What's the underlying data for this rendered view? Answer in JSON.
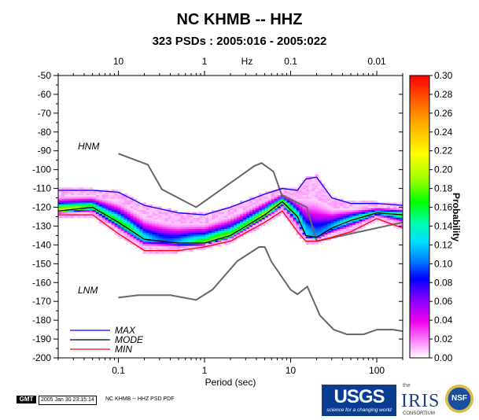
{
  "header": {
    "title": "NC KHMB -- HHZ",
    "subtitle": "323 PSDs : 2005:016 - 2005:022"
  },
  "footer": {
    "gmt_badge": "GMT",
    "timestamp": "2005 Jan 30 23:15:14",
    "note": "NC KHMB -- HHZ PSD PDF",
    "usgs_text": "USGS",
    "usgs_tagline": "science for a changing world",
    "iris_the": "the",
    "iris_text": "IRIS",
    "iris_sub": "CONSORTIUM",
    "nsf_text": "NSF"
  },
  "chart_data": {
    "type": "heatmap",
    "title": "NC KHMB -- HHZ",
    "subtitle": "323 PSDs : 2005:016 - 2005:022",
    "xlabel": "Period (sec)",
    "xscale": "log",
    "xlim": [
      0.02,
      200
    ],
    "x_ticks": [
      0.1,
      1,
      10,
      100
    ],
    "x_tick_labels": [
      "0.1",
      "1",
      "10",
      "100"
    ],
    "top_axis": {
      "label": "Hz",
      "ticks": [
        10,
        1,
        0.1,
        0.01
      ],
      "tick_labels": [
        "10",
        "1",
        "0.1",
        "0.01"
      ]
    },
    "ylabel": "",
    "ylim": [
      -200,
      -50
    ],
    "y_ticks": [
      -50,
      -60,
      -70,
      -80,
      -90,
      -100,
      -110,
      -120,
      -130,
      -140,
      -150,
      -160,
      -170,
      -180,
      -190,
      -200
    ],
    "y_tick_labels": [
      "-50",
      "-60",
      "-70",
      "-80",
      "-90",
      "-100",
      "-110",
      "-120",
      "-130",
      "-140",
      "-150",
      "-160",
      "-170",
      "-180",
      "-190",
      "-200"
    ],
    "colorbar": {
      "label": "Probability",
      "range": [
        0.0,
        0.3
      ],
      "ticks": [
        0.0,
        0.02,
        0.04,
        0.06,
        0.08,
        0.1,
        0.12,
        0.14,
        0.16,
        0.18,
        0.2,
        0.22,
        0.24,
        0.26,
        0.28,
        0.3
      ],
      "tick_labels": [
        "0.00",
        "0.02",
        "0.04",
        "0.06",
        "0.08",
        "0.10",
        "0.12",
        "0.14",
        "0.16",
        "0.18",
        "0.20",
        "0.22",
        "0.24",
        "0.26",
        "0.28",
        "0.30"
      ],
      "colors": [
        "#ffffff",
        "#ff99ff",
        "#ee00ee",
        "#7f00ff",
        "#0000ff",
        "#0077ff",
        "#00ddff",
        "#00ffaa",
        "#00ff00",
        "#99ff00",
        "#ffff00",
        "#ffaa00",
        "#ff5500",
        "#ff0000"
      ]
    },
    "series": [
      {
        "name": "MAX",
        "color": "#0000ff",
        "x": [
          0.02,
          0.05,
          0.1,
          0.2,
          0.5,
          1,
          2,
          5,
          8,
          12,
          15,
          20,
          30,
          50,
          100,
          200
        ],
        "y": [
          -111,
          -111,
          -112,
          -119,
          -123,
          -124,
          -120,
          -113,
          -110,
          -111,
          -105,
          -104,
          -115,
          -118,
          -118,
          -119
        ]
      },
      {
        "name": "MODE",
        "color": "#000000",
        "x": [
          0.02,
          0.05,
          0.1,
          0.2,
          0.5,
          1,
          2,
          5,
          8,
          12,
          15,
          20,
          30,
          50,
          100,
          200
        ],
        "y": [
          -122,
          -120,
          -128,
          -137,
          -139,
          -139,
          -135,
          -124,
          -117,
          -125,
          -135,
          -136,
          -131,
          -127,
          -123,
          -124
        ]
      },
      {
        "name": "MIN",
        "color": "#ff0000",
        "x": [
          0.02,
          0.05,
          0.1,
          0.2,
          0.5,
          1,
          2,
          5,
          8,
          12,
          15,
          20,
          30,
          50,
          100,
          200
        ],
        "y": [
          -124,
          -124,
          -134,
          -143,
          -143,
          -141,
          -138,
          -128,
          -122,
          -133,
          -138,
          -138,
          -136,
          -133,
          -126,
          -131
        ]
      }
    ],
    "reference_models": [
      {
        "name": "HNM",
        "color": "#666666",
        "x": [
          0.1,
          0.22,
          0.32,
          0.8,
          3.8,
          4.6,
          6.3,
          7.9,
          15.4,
          20
        ],
        "y": [
          -91.5,
          -97.4,
          -110.5,
          -120,
          -98,
          -96.5,
          -101,
          -113.5,
          -120,
          -138
        ]
      },
      {
        "name": "LNM",
        "color": "#666666",
        "x": [
          0.1,
          0.17,
          0.4,
          0.8,
          1.24,
          2.4,
          4.3,
          5,
          6,
          10,
          12,
          15.6,
          21.9,
          31.6,
          45,
          70,
          101,
          154,
          328
        ],
        "y": [
          -168,
          -166.7,
          -166.7,
          -169.2,
          -163.7,
          -148.6,
          -141.1,
          -141.1,
          -149,
          -163.8,
          -166.2,
          -162.1,
          -177.5,
          -185,
          -187.5,
          -187.5,
          -185,
          -185,
          -187.5
        ]
      }
    ],
    "secondary_line": {
      "color": "#666666",
      "x": [
        20,
        200
      ],
      "y": [
        -138,
        -128
      ]
    },
    "legend": {
      "placement": "bottom-left",
      "entries": [
        "MAX",
        "MODE",
        "MIN"
      ]
    },
    "annotations": [
      "HNM",
      "LNM"
    ],
    "grid": false
  }
}
